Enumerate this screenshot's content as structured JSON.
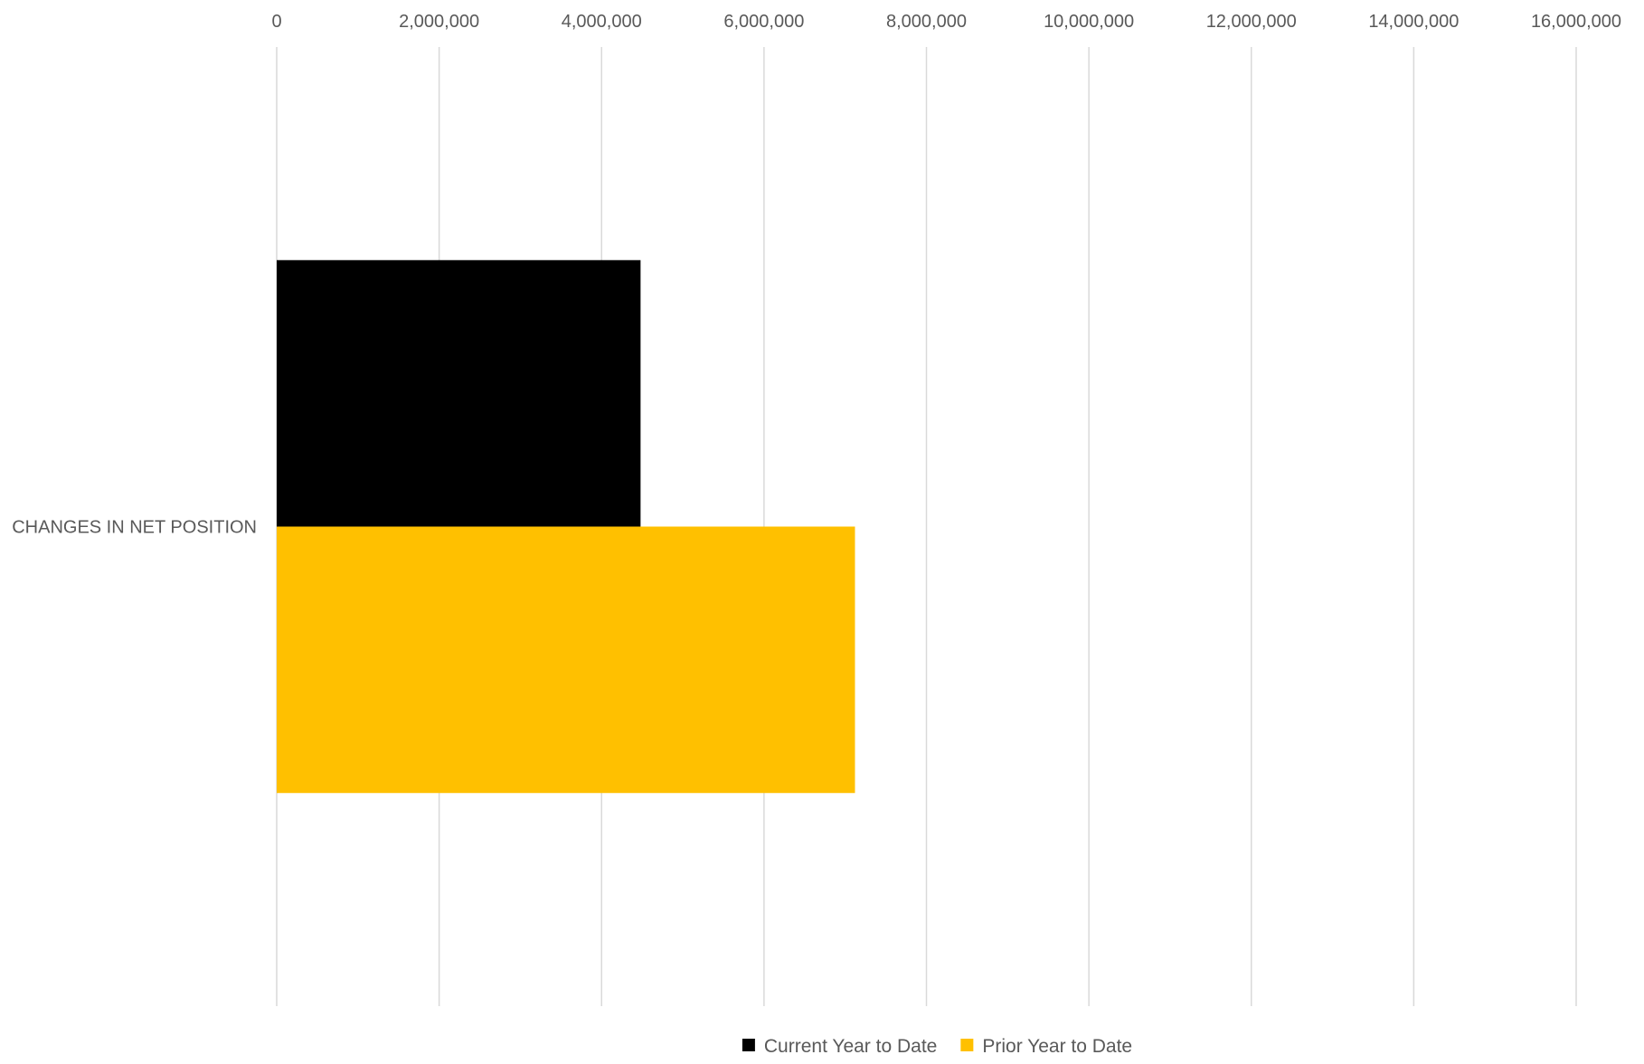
{
  "chart_data": {
    "type": "bar",
    "orientation": "horizontal",
    "categories": [
      "CHANGES IN NET POSITION"
    ],
    "series": [
      {
        "name": "Current Year to Date",
        "color": "#000000",
        "values": [
          4480000
        ]
      },
      {
        "name": "Prior Year to Date",
        "color": "#FFC000",
        "values": [
          7120000
        ]
      }
    ],
    "xlim": [
      0,
      16000000
    ],
    "xticks": [
      0,
      2000000,
      4000000,
      6000000,
      8000000,
      10000000,
      12000000,
      14000000,
      16000000
    ],
    "xtick_labels": [
      "0",
      "2,000,000",
      "4,000,000",
      "6,000,000",
      "8,000,000",
      "10,000,000",
      "12,000,000",
      "14,000,000",
      "16,000,000"
    ],
    "x_axis_position": "top",
    "grid": true,
    "gridline_color": "#D9D9D9",
    "legend_position": "bottom",
    "title": "",
    "xlabel": "",
    "ylabel": ""
  }
}
